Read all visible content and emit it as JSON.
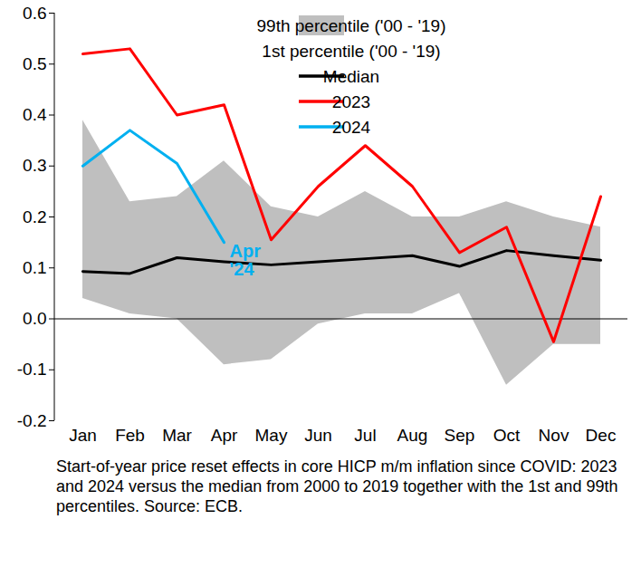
{
  "chart_data": {
    "type": "line",
    "caption": "Start-of-year price reset effects in core HICP m/m inflation since COVID: 2023 and 2024 versus the median from 2000 to 2019 together with the 1st and 99th percentiles. Source: ECB.",
    "categories": [
      "Jan",
      "Feb",
      "Mar",
      "Apr",
      "May",
      "Jun",
      "Jul",
      "Aug",
      "Sep",
      "Oct",
      "Nov",
      "Dec"
    ],
    "series": [
      {
        "name": "99th percentile ('00 - '19)",
        "type": "area",
        "color": "#bfbfbf",
        "values": [
          0.39,
          0.23,
          0.24,
          0.31,
          0.22,
          0.2,
          0.25,
          0.2,
          0.2,
          0.23,
          0.2,
          0.18
        ]
      },
      {
        "name": "1st percentile ('00 - '19)",
        "type": "area",
        "color": "#ffffff",
        "values": [
          0.04,
          0.01,
          0.0,
          -0.09,
          -0.08,
          -0.01,
          0.01,
          0.01,
          0.05,
          -0.13,
          -0.05,
          -0.05
        ]
      },
      {
        "name": "Median",
        "type": "line",
        "color": "#000000",
        "values": [
          0.093,
          0.089,
          0.12,
          0.112,
          0.106,
          0.112,
          0.118,
          0.124,
          0.103,
          0.134,
          0.124,
          0.115
        ]
      },
      {
        "name": "2023",
        "type": "line",
        "color": "#ff0000",
        "values": [
          0.52,
          0.53,
          0.4,
          0.42,
          0.155,
          0.26,
          0.34,
          0.26,
          0.13,
          0.18,
          -0.045,
          0.24
        ]
      },
      {
        "name": "2024",
        "type": "line",
        "color": "#00b0f0",
        "values": [
          0.3,
          0.37,
          0.305,
          0.15,
          null,
          null,
          null,
          null,
          null,
          null,
          null,
          null
        ]
      }
    ],
    "annotations": [
      {
        "text": "Apr\n'24",
        "series": "2024",
        "color": "#00b0f0"
      }
    ],
    "ylim": [
      -0.2,
      0.6
    ],
    "yticks": [
      -0.2,
      -0.1,
      {
        "value": 0,
        "label": "0.0"
      },
      0.1,
      0.2,
      0.3,
      0.4,
      0.5,
      0.6
    ],
    "legend": "top-right",
    "grid": false
  }
}
